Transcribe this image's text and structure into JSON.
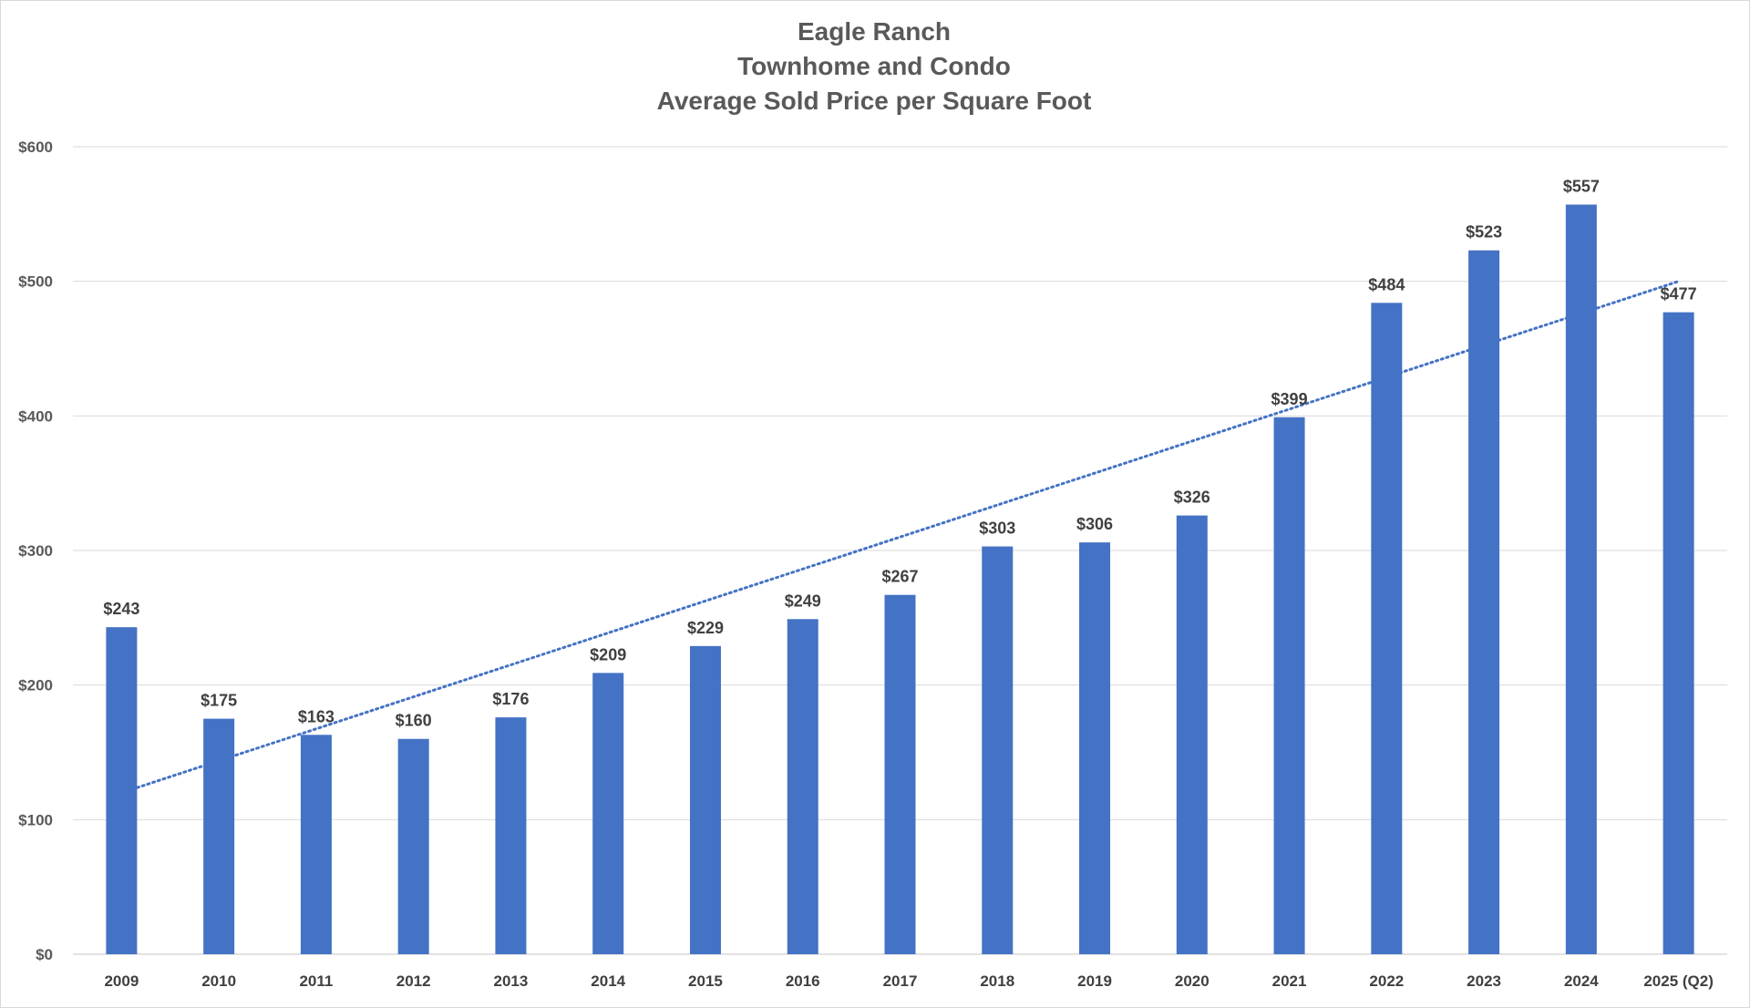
{
  "chart_data": {
    "type": "bar",
    "title_lines": [
      "Eagle Ranch",
      "Townhome and Condo",
      "Average Sold Price per Square Foot"
    ],
    "categories": [
      "2009",
      "2010",
      "2011",
      "2012",
      "2013",
      "2014",
      "2015",
      "2016",
      "2017",
      "2018",
      "2019",
      "2020",
      "2021",
      "2022",
      "2023",
      "2024",
      "2025 (Q2)"
    ],
    "values": [
      243,
      175,
      163,
      160,
      176,
      209,
      229,
      249,
      267,
      303,
      306,
      326,
      399,
      484,
      523,
      557,
      477
    ],
    "data_labels": [
      "$243",
      "$175",
      "$163",
      "$160",
      "$176",
      "$209",
      "$229",
      "$249",
      "$267",
      "$303",
      "$306",
      "$326",
      "$399",
      "$484",
      "$523",
      "$557",
      "$477"
    ],
    "ylim": [
      0,
      600
    ],
    "y_ticks": [
      0,
      100,
      200,
      300,
      400,
      500,
      600
    ],
    "y_tick_labels": [
      "$0",
      "$100",
      "$200",
      "$300",
      "$400",
      "$500",
      "$600"
    ],
    "trendline": {
      "type": "linear",
      "style": "dotted",
      "start_value": 120,
      "end_value": 500
    },
    "grid": true,
    "legend": "none",
    "colors": {
      "bar": "#4472C4",
      "trendline": "#4472C4",
      "grid": "#d9d9d9",
      "title": "#595959"
    }
  }
}
